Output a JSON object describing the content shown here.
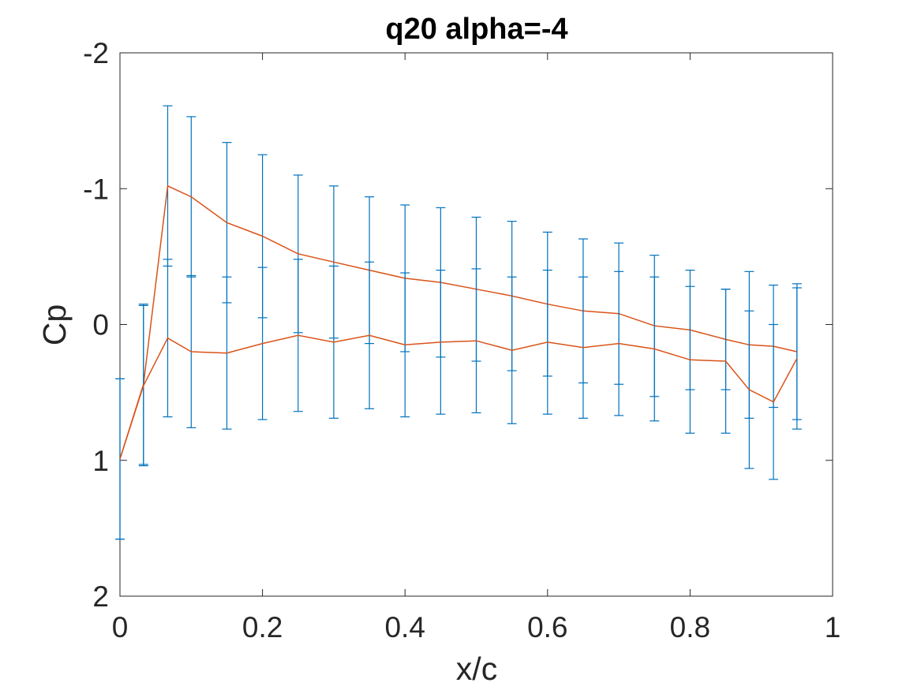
{
  "chart_data": {
    "type": "line",
    "title": "q20 alpha=-4",
    "xlabel": "x/c",
    "ylabel": "Cp",
    "xlim": [
      0,
      1
    ],
    "ylim": [
      -2,
      2
    ],
    "y_reversed": true,
    "xticks": [
      "0",
      "0.2",
      "0.4",
      "0.6",
      "0.8",
      "1"
    ],
    "yticks": [
      "-2",
      "-1",
      "0",
      "1",
      "2"
    ],
    "grid": false,
    "legend": "none",
    "colors": {
      "line": "#d95319",
      "errorbar": "#0072bd",
      "axes": "#262626"
    },
    "x": [
      0,
      0.033,
      0.067,
      0.1,
      0.15,
      0.2,
      0.25,
      0.3,
      0.35,
      0.4,
      0.45,
      0.5,
      0.55,
      0.6,
      0.65,
      0.7,
      0.75,
      0.8,
      0.85,
      0.883,
      0.917,
      0.95
    ],
    "series": [
      {
        "values": [
          0.99,
          0.44,
          -1.02,
          -0.94,
          -0.75,
          -0.65,
          -0.52,
          -0.46,
          -0.4,
          -0.34,
          -0.31,
          -0.26,
          -0.21,
          -0.15,
          -0.1,
          -0.08,
          0.01,
          0.04,
          0.11,
          0.15,
          0.16,
          0.2
        ],
        "error": [
          0.59,
          0.59,
          0.59,
          0.59,
          0.59,
          0.6,
          0.58,
          0.56,
          0.54,
          0.54,
          0.55,
          0.53,
          0.55,
          0.53,
          0.53,
          0.52,
          0.52,
          0.44,
          0.37,
          0.54,
          0.45,
          0.5
        ]
      },
      {
        "values": [
          0.99,
          0.45,
          0.1,
          0.2,
          0.21,
          0.14,
          0.08,
          0.13,
          0.08,
          0.15,
          0.13,
          0.12,
          0.19,
          0.13,
          0.17,
          0.14,
          0.18,
          0.26,
          0.27,
          0.48,
          0.57,
          0.25
        ],
        "error": [
          0.59,
          0.59,
          0.58,
          0.56,
          0.56,
          0.56,
          0.56,
          0.56,
          0.54,
          0.53,
          0.53,
          0.53,
          0.54,
          0.53,
          0.52,
          0.53,
          0.53,
          0.54,
          0.53,
          0.58,
          0.57,
          0.52
        ]
      }
    ]
  }
}
